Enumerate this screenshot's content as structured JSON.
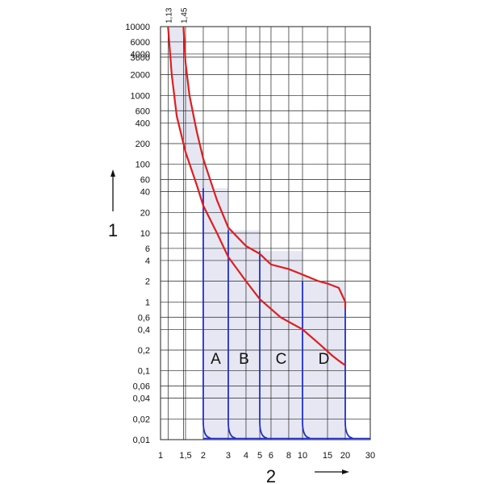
{
  "chart_data": {
    "type": "line",
    "title": "",
    "x_scale": "log",
    "y_scale": "log",
    "xlim": [
      1,
      30
    ],
    "ylim": [
      0.01,
      10000
    ],
    "grid": true,
    "xlabel": "2",
    "ylabel": "1",
    "x_tick_values": [
      1,
      1.5,
      2,
      3,
      4,
      5,
      6,
      8,
      10,
      15,
      20,
      30
    ],
    "x_tick_labels": [
      "1",
      "1,5",
      "2",
      "3",
      "4",
      "5",
      "6",
      "8",
      "10",
      "15",
      "20",
      "30"
    ],
    "x_top_tick_values": [
      1.13,
      1.45
    ],
    "x_top_tick_labels": [
      "1,13",
      "1,45"
    ],
    "y_tick_values": [
      0.01,
      0.02,
      0.04,
      0.06,
      0.1,
      0.2,
      0.4,
      0.6,
      1,
      2,
      4,
      6,
      10,
      20,
      40,
      60,
      100,
      200,
      400,
      600,
      1000,
      2000,
      3600,
      4000,
      6000,
      10000
    ],
    "y_tick_labels": [
      "0,01",
      "0,02",
      "0,04",
      "0,06",
      "0,1",
      "0,2",
      "0,4",
      "0,6",
      "1",
      "2",
      "4",
      "6",
      "10",
      "20",
      "40",
      "60",
      "100",
      "200",
      "400",
      "600",
      "1000",
      "2000",
      "3600",
      "4000",
      "6000",
      "10000"
    ],
    "thermal_band": {
      "upper": [
        [
          1.45,
          10000
        ],
        [
          1.5,
          3000
        ],
        [
          1.6,
          1000
        ],
        [
          1.8,
          300
        ],
        [
          2.0,
          120
        ],
        [
          2.5,
          30
        ],
        [
          3.0,
          12
        ],
        [
          4.0,
          6.5
        ],
        [
          5.0,
          5.0
        ]
      ],
      "lower": [
        [
          1.13,
          10000
        ],
        [
          1.2,
          2000
        ],
        [
          1.3,
          500
        ],
        [
          1.5,
          150
        ],
        [
          1.8,
          50
        ],
        [
          2.0,
          25
        ],
        [
          2.5,
          10
        ],
        [
          3.0,
          4.5
        ],
        [
          4.0,
          2.0
        ],
        [
          5.0,
          1.1
        ],
        [
          7.0,
          0.6
        ],
        [
          10.0,
          0.4
        ]
      ]
    },
    "magnetic_curve_upper": [
      [
        5.0,
        5.0
      ],
      [
        6.0,
        3.5
      ],
      [
        8.0,
        3.0
      ],
      [
        10.0,
        2.5
      ],
      [
        13.0,
        2.0
      ],
      [
        15.0,
        1.85
      ],
      [
        18.0,
        1.6
      ],
      [
        20.0,
        1.0
      ],
      [
        20.0,
        0.8
      ]
    ],
    "magnetic_curve_lower": [
      [
        10.0,
        0.4
      ],
      [
        13.0,
        0.25
      ],
      [
        16.0,
        0.17
      ],
      [
        18.0,
        0.14
      ],
      [
        20.0,
        0.12
      ]
    ],
    "series": [
      {
        "name": "A",
        "instant_trip_x": [
          2,
          3
        ]
      },
      {
        "name": "B",
        "instant_trip_x": [
          3,
          5
        ]
      },
      {
        "name": "C",
        "instant_trip_x": [
          5,
          10
        ]
      },
      {
        "name": "D",
        "instant_trip_x": [
          10,
          20
        ]
      }
    ],
    "band_top_times": [
      45,
      11,
      5.5,
      2.0,
      0.9
    ],
    "colors": {
      "thermal_curve": "#dd1f1f",
      "trip_line": "#1f2fcc",
      "band_fill": "#e7e7f3",
      "grid": "#222222"
    }
  }
}
